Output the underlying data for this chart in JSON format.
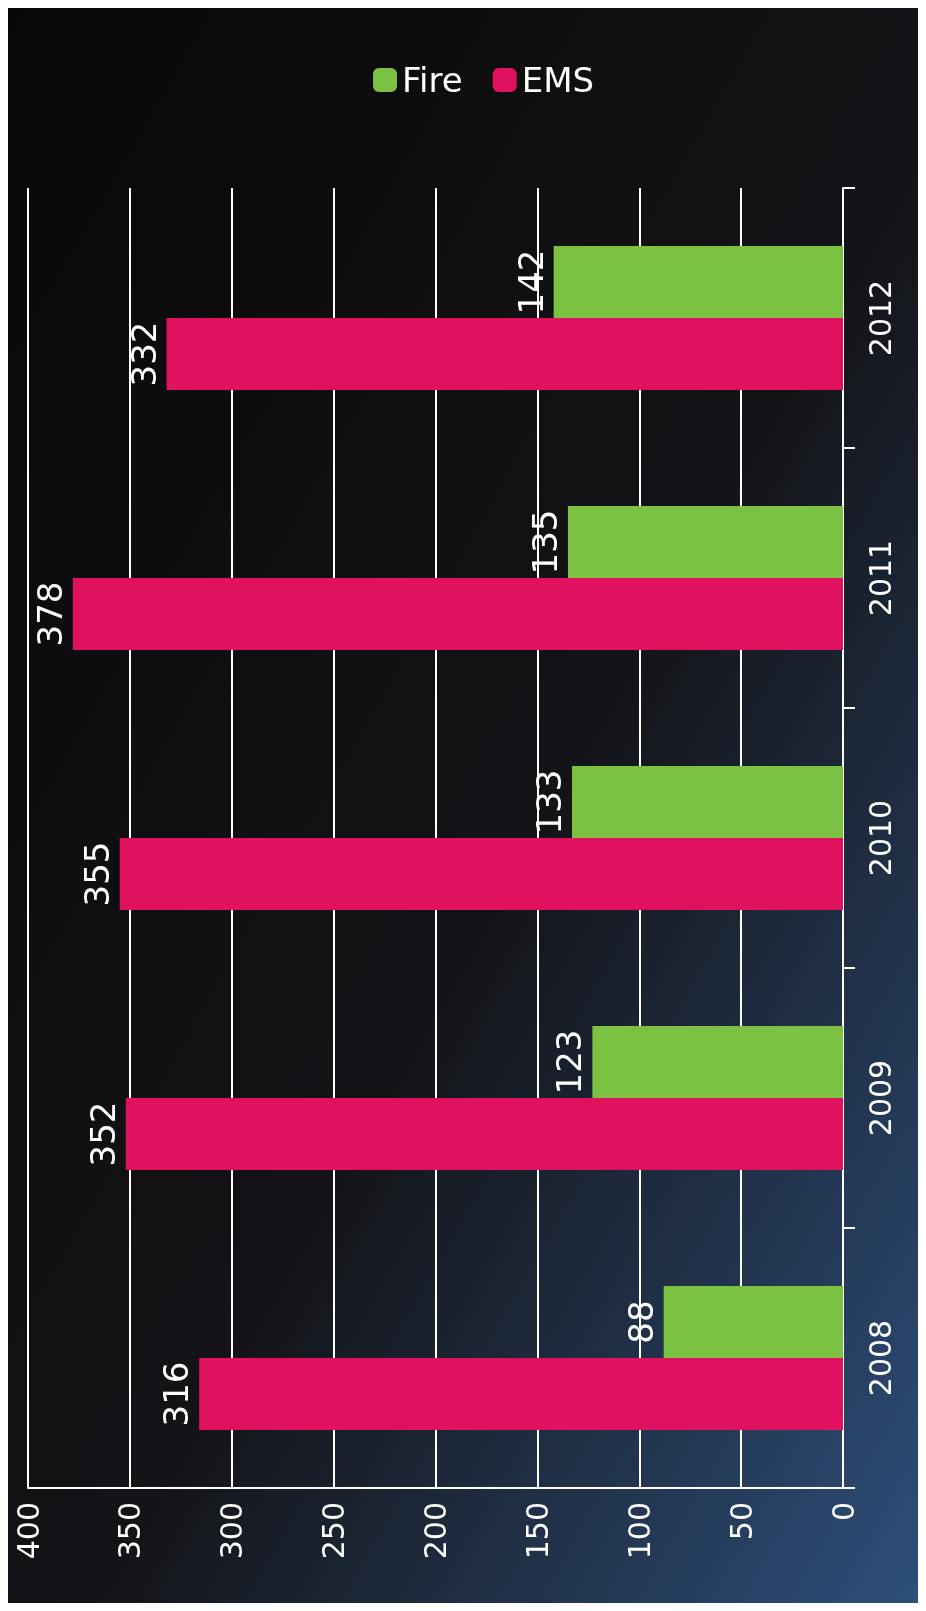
{
  "chart_data": {
    "type": "bar",
    "orientation": "horizontal",
    "categories": [
      "2012",
      "2011",
      "2010",
      "2009",
      "2008"
    ],
    "series": [
      {
        "name": "Fire",
        "color": "#7cc242",
        "values": [
          142,
          135,
          133,
          123,
          88
        ]
      },
      {
        "name": "EMS",
        "color": "#e0115f",
        "values": [
          332,
          378,
          355,
          352,
          316
        ]
      }
    ],
    "xlim": [
      400,
      0
    ],
    "xticks": [
      0,
      50,
      100,
      150,
      200,
      250,
      300,
      350,
      400
    ],
    "grid": "x",
    "legend": "top",
    "data_labels": true
  }
}
